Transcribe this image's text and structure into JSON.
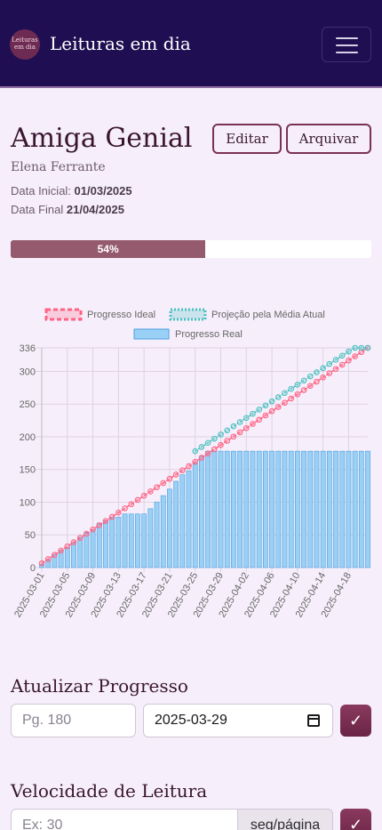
{
  "navbar": {
    "logo_line1": "Leituras",
    "logo_line2": "em dia",
    "brand": "Leituras em dia",
    "menu_icon": "hamburger-menu-icon"
  },
  "book": {
    "title": "Amiga Genial",
    "author": "Elena Ferrante",
    "edit_label": "Editar",
    "archive_label": "Arquivar",
    "start_label": "Data Inicial:",
    "start_date": "01/03/2025",
    "end_label": "Data Final",
    "end_date": "21/04/2025",
    "progress_text": "54%",
    "progress_fraction": 0.54
  },
  "colors": {
    "navbar": "#1f0f52",
    "accent": "#7a3155",
    "progress": "#955a6e",
    "ideal": "#ff6384",
    "projection": "#4bc0c0",
    "real": "#9ad0f5"
  },
  "chart_data": {
    "type": "bar",
    "legend": [
      "Progresso Ideal",
      "Projeção pela Média Atual",
      "Progresso Real"
    ],
    "legend_position": "top",
    "grid": true,
    "ylim": [
      0,
      336
    ],
    "yticks": [
      0,
      50,
      100,
      150,
      200,
      250,
      300,
      336
    ],
    "xtick_labels": [
      "2025-03-01",
      "2025-03-05",
      "2025-03-09",
      "2025-03-13",
      "2025-03-17",
      "2025-03-21",
      "2025-03-25",
      "2025-03-29",
      "2025-04-02",
      "2025-04-06",
      "2025-04-10",
      "2025-04-14",
      "2025-04-18"
    ],
    "x_start": "2025-03-01",
    "x_end": "2025-04-21",
    "series": [
      {
        "name": "Progresso Real",
        "type": "bar",
        "values": [
          5,
          12,
          20,
          26,
          31,
          38,
          46,
          54,
          58,
          68,
          72,
          77,
          77,
          82,
          82,
          82,
          82,
          90,
          100,
          110,
          120,
          132,
          142,
          148,
          160,
          170,
          178,
          178,
          178,
          178,
          178,
          178,
          178,
          178,
          178,
          178,
          178,
          178,
          178,
          178,
          178,
          178,
          178,
          178,
          178,
          178,
          178,
          178,
          178,
          178,
          178,
          178
        ]
      },
      {
        "name": "Progresso Ideal",
        "type": "line",
        "start": 6.5,
        "end": 336
      },
      {
        "name": "Projeção pela Média Atual",
        "type": "line",
        "from_day": 24,
        "start": 178,
        "rate": 6.35,
        "cap": 336
      }
    ]
  },
  "update": {
    "title": "Atualizar Progresso",
    "page_placeholder": "Pg. 180",
    "date_value": "2025-03-29",
    "confirm_icon": "check-icon"
  },
  "speed": {
    "title": "Velocidade de Leitura",
    "placeholder": "Ex: 30",
    "unit": "seg/página",
    "confirm_icon": "check-icon"
  }
}
